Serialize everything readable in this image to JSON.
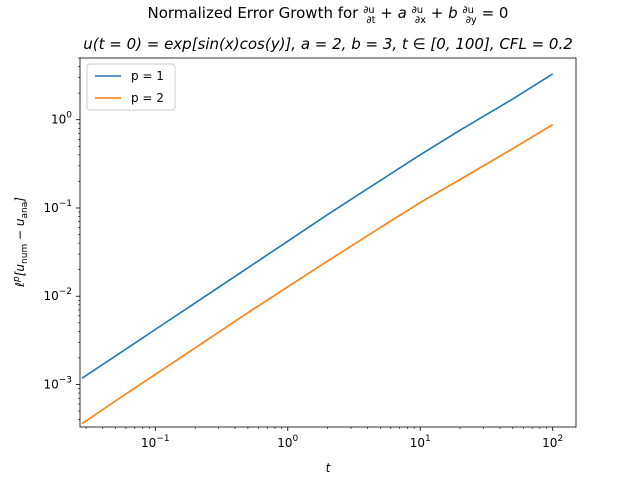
{
  "chart_data": {
    "type": "line",
    "title": "Normalized Error Growth for ∂u/∂t + a∂u/∂x + b∂u/∂y = 0",
    "title_parts": {
      "prefix": "Normalized Error Growth for ",
      "d1_num": "∂u",
      "d1_den": "∂t",
      "plus1": " + a",
      "d2_num": "∂u",
      "d2_den": "∂x",
      "plus2": " + b",
      "d3_num": "∂u",
      "d3_den": "∂y",
      "suffix": " = 0"
    },
    "subtitle": "u(t = 0) = exp[sin(x)cos(y)], a = 2, b = 3, t ∈ [0, 100], CFL = 0.2",
    "xlabel": "t",
    "ylabel": "ℓᵖ[u_num − u_ana]",
    "ylabel_parts": {
      "ell": "ℓ",
      "p": "p",
      "open": "[u",
      "num": "num",
      "minus": " − u",
      "ana": "ana",
      "close": "]"
    },
    "xscale": "log",
    "yscale": "log",
    "xlim": [
      0.027,
      150
    ],
    "ylim": [
      0.00033,
      5
    ],
    "x_ticks": [
      {
        "value": 0.1,
        "base": "10",
        "exp": "−1"
      },
      {
        "value": 1,
        "base": "10",
        "exp": "0"
      },
      {
        "value": 10,
        "base": "10",
        "exp": "1"
      },
      {
        "value": 100,
        "base": "10",
        "exp": "2"
      }
    ],
    "y_ticks": [
      {
        "value": 0.001,
        "base": "10",
        "exp": "−3"
      },
      {
        "value": 0.01,
        "base": "10",
        "exp": "−2"
      },
      {
        "value": 0.1,
        "base": "10",
        "exp": "−1"
      },
      {
        "value": 1,
        "base": "10",
        "exp": "0"
      }
    ],
    "grid": false,
    "legend_position": "top-left",
    "series": [
      {
        "name": "p = 1",
        "color": "#1f77b4",
        "x": [
          0.028,
          0.05,
          0.1,
          0.2,
          0.5,
          1,
          2,
          5,
          10,
          20,
          50,
          100
        ],
        "y": [
          0.00118,
          0.0021,
          0.0042,
          0.0084,
          0.021,
          0.042,
          0.084,
          0.205,
          0.4,
          0.76,
          1.72,
          3.3
        ]
      },
      {
        "name": "p = 2",
        "color": "#ff7f0e",
        "x": [
          0.028,
          0.05,
          0.1,
          0.2,
          0.5,
          1,
          2,
          5,
          10,
          20,
          50,
          100
        ],
        "y": [
          0.00036,
          0.00065,
          0.0013,
          0.0026,
          0.0065,
          0.0128,
          0.025,
          0.06,
          0.115,
          0.21,
          0.47,
          0.88
        ]
      }
    ]
  }
}
